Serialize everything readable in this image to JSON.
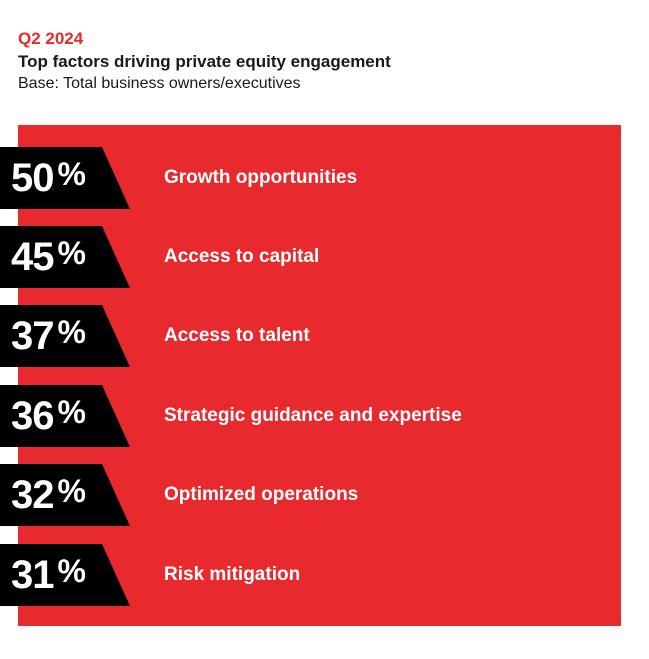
{
  "header": {
    "period": "Q2 2024",
    "title": "Top factors driving private equity engagement",
    "subtitle": "Base: Total business owners/executives"
  },
  "colors": {
    "accent": "#e8292e",
    "tag": "#000000",
    "period": "#e8292e"
  },
  "chart_data": {
    "type": "bar",
    "categories": [
      "Growth opportunities",
      "Access to capital",
      "Access to talent",
      "Strategic guidance and expertise",
      "Optimized operations",
      "Risk mitigation"
    ],
    "values": [
      50,
      45,
      37,
      36,
      32,
      31
    ],
    "unit": "%",
    "title": "Top factors driving private equity engagement",
    "subtitle": "Base: Total business owners/executives",
    "xlabel": "",
    "ylabel": ""
  }
}
